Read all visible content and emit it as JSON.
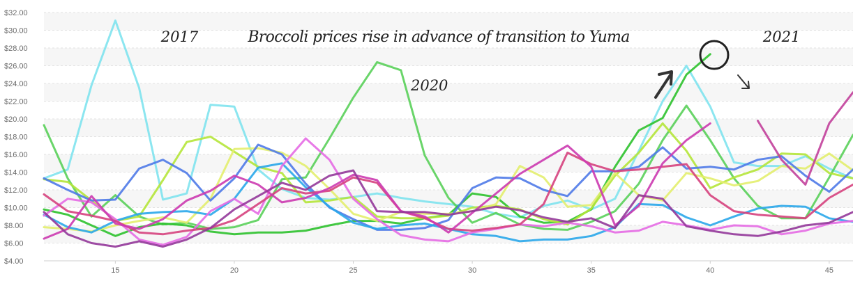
{
  "chart_data": {
    "type": "line",
    "title": "",
    "xlabel": "",
    "ylabel": "",
    "xlim": [
      12,
      46
    ],
    "ylim": [
      4,
      32
    ],
    "x_ticks": [
      15,
      20,
      25,
      30,
      35,
      40,
      45
    ],
    "y_ticks": [
      "$4.00",
      "$6.00",
      "$8.00",
      "$10.00",
      "$12.00",
      "$14.00",
      "$16.00",
      "$18.00",
      "$20.00",
      "$22.00",
      "$24.00",
      "$26.00",
      "$28.00",
      "$30.00",
      "$32.00"
    ],
    "grid": "horizontal-bands",
    "series": [
      {
        "color": "#7fe3ee",
        "x": [
          12,
          13,
          14,
          15,
          16,
          17,
          18,
          19,
          20,
          21,
          22,
          23,
          24,
          25,
          26,
          27,
          28,
          29,
          30,
          31,
          32,
          33,
          34,
          35,
          36,
          37,
          38,
          39,
          40,
          41,
          42,
          43,
          44,
          45,
          46
        ],
        "values": [
          13.3,
          14.3,
          23.8,
          31.1,
          23.5,
          10.9,
          11.6,
          21.6,
          21.4,
          14.3,
          12.1,
          11.1,
          10.9,
          11.2,
          11.6,
          11.1,
          10.7,
          10.4,
          10.1,
          9.3,
          8.9,
          10.2,
          10.8,
          9.8,
          11.0,
          16.4,
          22.0,
          26.0,
          21.4,
          15.1,
          14.7,
          14.7,
          15.8,
          14.4,
          13.3
        ]
      },
      {
        "color": "#5ad05a",
        "x": [
          12,
          13,
          14,
          15,
          16,
          17,
          18,
          19,
          20,
          21,
          22,
          23,
          24,
          25,
          26,
          27,
          28,
          29,
          30,
          31,
          32,
          33,
          34,
          35,
          36,
          37,
          38,
          39,
          40,
          41,
          42,
          43,
          44,
          45,
          46
        ],
        "values": [
          19.3,
          13.3,
          9.0,
          11.4,
          9.0,
          8.1,
          8.3,
          7.6,
          7.8,
          8.6,
          13.2,
          13.4,
          17.8,
          22.4,
          26.4,
          25.5,
          15.9,
          11.1,
          8.3,
          9.4,
          8.1,
          7.6,
          7.5,
          8.4,
          9.6,
          12.7,
          17.6,
          21.5,
          17.6,
          13.3,
          10.2,
          8.8,
          8.8,
          13.4,
          18.2
        ]
      },
      {
        "color": "#2ec22e",
        "x": [
          12,
          13,
          14,
          15,
          16,
          17,
          18,
          19,
          20,
          21,
          22,
          23,
          24,
          25,
          26,
          27,
          28,
          29,
          30,
          31,
          32,
          33,
          34,
          35,
          36,
          37,
          38,
          39,
          40
        ],
        "values": [
          9.8,
          9.2,
          8.0,
          6.8,
          7.8,
          8.2,
          8.0,
          7.3,
          7.0,
          7.2,
          7.2,
          7.4,
          8.0,
          8.5,
          8.5,
          8.2,
          8.8,
          9.2,
          11.6,
          11.2,
          9.0,
          8.3,
          8.4,
          9.8,
          14.6,
          18.7,
          20.1,
          25.0,
          27.3
        ]
      },
      {
        "color": "#b5e63a",
        "x": [
          12,
          13,
          14,
          15,
          16,
          17,
          18,
          19,
          20,
          21,
          22,
          23,
          24,
          25,
          26,
          27,
          28,
          29,
          30,
          31,
          32,
          33,
          34,
          35,
          36,
          37,
          38,
          39,
          40,
          41,
          42,
          43,
          44,
          45,
          46
        ],
        "values": [
          13.2,
          12.9,
          10.8,
          8.5,
          9.0,
          13.1,
          17.4,
          18.0,
          16.3,
          14.6,
          13.9,
          10.6,
          10.8,
          11.2,
          9.0,
          8.8,
          8.8,
          9.1,
          10.0,
          10.2,
          9.8,
          8.7,
          8.1,
          9.9,
          13.6,
          16.2,
          19.5,
          16.4,
          12.2,
          13.4,
          14.3,
          16.1,
          16.0,
          13.9,
          13.3
        ]
      },
      {
        "color": "#e3ee6e",
        "x": [
          12,
          13,
          14,
          15,
          16,
          17,
          18,
          19,
          20,
          21,
          22,
          23,
          24,
          25,
          26,
          27,
          28,
          29,
          30,
          31,
          32,
          33,
          34,
          35,
          36,
          37,
          38,
          39,
          40,
          41,
          42,
          43,
          44,
          45,
          46
        ],
        "values": [
          7.8,
          7.6,
          7.3,
          8.0,
          8.5,
          8.9,
          8.3,
          11.0,
          16.6,
          16.7,
          16.2,
          14.7,
          12.1,
          9.3,
          8.5,
          9.5,
          9.3,
          9.3,
          9.6,
          10.4,
          14.7,
          13.4,
          10.1,
          10.3,
          13.9,
          11.4,
          10.8,
          13.9,
          13.3,
          12.5,
          13.0,
          14.7,
          14.4,
          16.1,
          14.2
        ]
      },
      {
        "color": "#4f7ae8",
        "x": [
          12,
          13,
          14,
          15,
          16,
          17,
          18,
          19,
          20,
          21,
          22,
          23,
          24,
          25,
          26,
          27,
          28,
          29,
          30,
          31,
          32,
          33,
          34,
          35,
          36,
          37,
          38,
          39,
          40,
          41,
          42,
          43,
          44,
          45,
          46
        ],
        "values": [
          13.3,
          12.0,
          10.8,
          10.9,
          14.4,
          15.4,
          13.9,
          10.8,
          13.3,
          17.1,
          16.0,
          12.7,
          10.0,
          8.7,
          7.5,
          7.5,
          7.7,
          8.6,
          12.2,
          13.4,
          13.3,
          12.0,
          11.3,
          14.1,
          14.1,
          14.6,
          16.8,
          14.4,
          14.6,
          14.3,
          15.4,
          15.8,
          13.6,
          11.8,
          14.3
        ]
      },
      {
        "color": "#2aa7ea",
        "x": [
          12,
          13,
          14,
          15,
          16,
          17,
          18,
          19,
          20,
          21,
          22,
          23,
          24,
          25,
          26,
          27,
          28,
          29,
          30,
          31,
          32,
          33,
          34,
          35,
          36,
          37,
          38,
          39,
          40,
          41,
          42,
          43,
          44,
          45,
          46
        ],
        "values": [
          9.2,
          7.8,
          7.2,
          8.5,
          9.3,
          9.5,
          9.6,
          9.2,
          11.0,
          14.5,
          15.0,
          12.3,
          10.1,
          8.3,
          7.6,
          8.0,
          8.2,
          7.6,
          7.0,
          6.8,
          6.2,
          6.4,
          6.4,
          6.8,
          7.8,
          10.4,
          10.3,
          8.9,
          8.0,
          9.0,
          9.9,
          10.2,
          10.1,
          8.8,
          8.4
        ]
      },
      {
        "color": "#e56be4",
        "x": [
          12,
          13,
          14,
          15,
          16,
          17,
          18,
          19,
          20,
          21,
          22,
          23,
          24,
          25,
          26,
          27,
          28,
          29,
          30,
          31,
          32,
          33,
          34,
          35,
          36,
          37,
          38,
          39,
          40,
          41,
          42,
          43,
          44,
          45,
          46
        ],
        "values": [
          9.1,
          11.0,
          10.6,
          8.7,
          6.4,
          5.8,
          6.7,
          9.6,
          11.0,
          9.3,
          14.7,
          17.8,
          15.4,
          11.0,
          8.7,
          6.9,
          6.4,
          6.2,
          7.2,
          7.6,
          8.1,
          7.9,
          8.3,
          7.9,
          7.2,
          7.4,
          8.4,
          8.0,
          7.5,
          8.0,
          7.9,
          7.0,
          7.4,
          8.2,
          8.5
        ]
      },
      {
        "color": "#d6437e",
        "x": [
          12,
          13,
          14,
          15,
          16,
          17,
          18,
          19,
          20,
          21,
          22,
          23,
          24,
          25,
          26,
          27,
          28,
          29,
          30,
          31,
          32,
          33,
          34,
          35,
          36,
          37,
          38,
          39,
          40,
          41,
          42,
          43,
          44,
          45,
          46
        ],
        "values": [
          11.5,
          9.6,
          9.1,
          8.5,
          7.2,
          7.0,
          7.4,
          7.7,
          8.6,
          10.4,
          12.2,
          11.6,
          11.9,
          13.4,
          12.8,
          9.6,
          8.8,
          7.6,
          7.4,
          7.7,
          8.1,
          10.4,
          16.2,
          14.9,
          14.1,
          14.3,
          14.6,
          14.9,
          11.4,
          9.6,
          9.2,
          9.0,
          8.8,
          11.1,
          12.6
        ]
      },
      {
        "color": "#cc3ab0",
        "x": [
          12,
          13,
          14,
          15,
          16,
          17,
          18,
          19,
          20,
          21,
          22,
          23,
          24,
          25,
          26,
          27,
          28,
          29,
          30,
          31,
          32,
          33,
          34,
          35,
          36,
          37,
          38,
          39,
          40
        ],
        "values": [
          6.5,
          7.6,
          11.3,
          8.2,
          7.6,
          8.7,
          10.8,
          11.9,
          13.6,
          12.6,
          10.6,
          11.1,
          12.2,
          13.7,
          13.1,
          9.6,
          9.0,
          7.2,
          9.4,
          11.6,
          13.8,
          15.4,
          17.0,
          14.6,
          8.0,
          10.2,
          15.0,
          17.6,
          19.5
        ]
      },
      {
        "color": "#c2409b",
        "x": [
          42,
          43,
          44,
          45,
          46
        ],
        "values": [
          19.8,
          15.4,
          12.6,
          19.5,
          23.0
        ]
      },
      {
        "color": "#93389a",
        "x": [
          12,
          13,
          14,
          15,
          16,
          17,
          18,
          19,
          20,
          21,
          22,
          23,
          24,
          25,
          26,
          27,
          28,
          29,
          30,
          31,
          32,
          33,
          34,
          35,
          36,
          37,
          38,
          39,
          40,
          41,
          42,
          43,
          44,
          45,
          46
        ],
        "values": [
          9.5,
          7.0,
          6.0,
          5.6,
          6.2,
          5.6,
          6.4,
          7.7,
          9.8,
          11.3,
          12.8,
          12.0,
          13.6,
          14.2,
          9.6,
          9.5,
          9.5,
          9.2,
          9.6,
          10.1,
          9.7,
          8.9,
          8.4,
          8.8,
          7.7,
          11.4,
          11.0,
          7.9,
          7.4,
          7.0,
          6.8,
          7.3,
          8.0,
          8.3,
          9.5
        ]
      }
    ],
    "annotations": [
      {
        "text": "2017",
        "x": 17.7,
        "y": 28.7
      },
      {
        "text": "Broccoli prices rise in advance of transition to Yuma",
        "x": 28.6,
        "y": 28.7
      },
      {
        "text": "2020",
        "x": 28.2,
        "y": 23.2
      },
      {
        "text": "2021",
        "x": 43.0,
        "y": 28.7
      }
    ]
  }
}
